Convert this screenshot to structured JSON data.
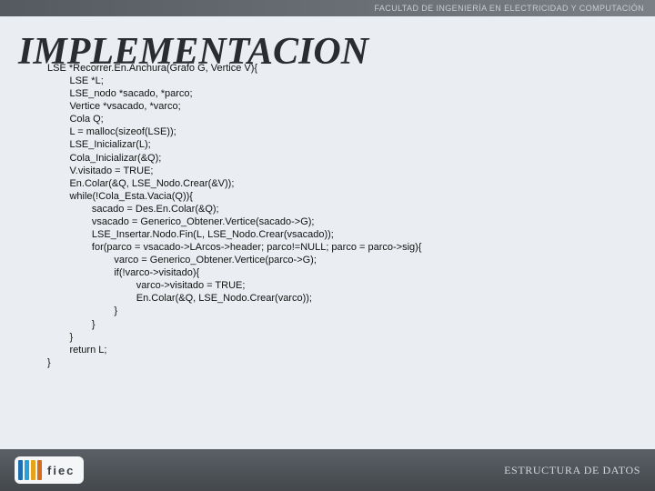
{
  "topbar": {
    "text": "FACULTAD DE INGENIERÍA EN ELECTRICIDAD Y COMPUTACIÓN"
  },
  "headline": {
    "text": "IMPLEMENTACION",
    "fontsize": 42
  },
  "code": {
    "fontsize": 11,
    "color": "#111111",
    "tab": "        ",
    "lines": [
      "LSE *Recorrer.En.Anchura(Grafo G, Vertice V){",
      "        LSE *L;",
      "        LSE_nodo *sacado, *parco;",
      "        Vertice *vsacado, *varco;",
      "        Cola Q;",
      "        L = malloc(sizeof(LSE));",
      "        LSE_Inicializar(L);",
      "        Cola_Inicializar(&Q);",
      "        V.visitado = TRUE;",
      "        En.Colar(&Q, LSE_Nodo.Crear(&V));",
      "        while(!Cola_Esta.Vacia(Q)){",
      "                sacado = Des.En.Colar(&Q);",
      "                vsacado = Generico_Obtener.Vertice(sacado->G);",
      "                LSE_Insertar.Nodo.Fin(L, LSE_Nodo.Crear(vsacado));",
      "                for(parco = vsacado->LArcos->header; parco!=NULL; parco = parco->sig){",
      "                        varco = Generico_Obtener.Vertice(parco->G);",
      "                        if(!varco->visitado){",
      "                                varco->visitado = TRUE;",
      "                                En.Colar(&Q, LSE_Nodo.Crear(varco));",
      "                        }",
      "                }",
      "        }",
      "        return L;",
      "}"
    ]
  },
  "footer": {
    "logo_text": "fiec",
    "logo_fontsize": 13,
    "stripe_colors": [
      "#1f6fb0",
      "#2aa0d8",
      "#e7a31a",
      "#d66b1f"
    ],
    "right_text": "ESTRUCTURA DE DATOS",
    "right_fontsize": 12
  },
  "colors": {
    "page_bg": "#eaeef2",
    "headline_color": "#2a2d30",
    "topbar_text": "#c6cdd4",
    "footer_text": "#cfd6dc"
  }
}
